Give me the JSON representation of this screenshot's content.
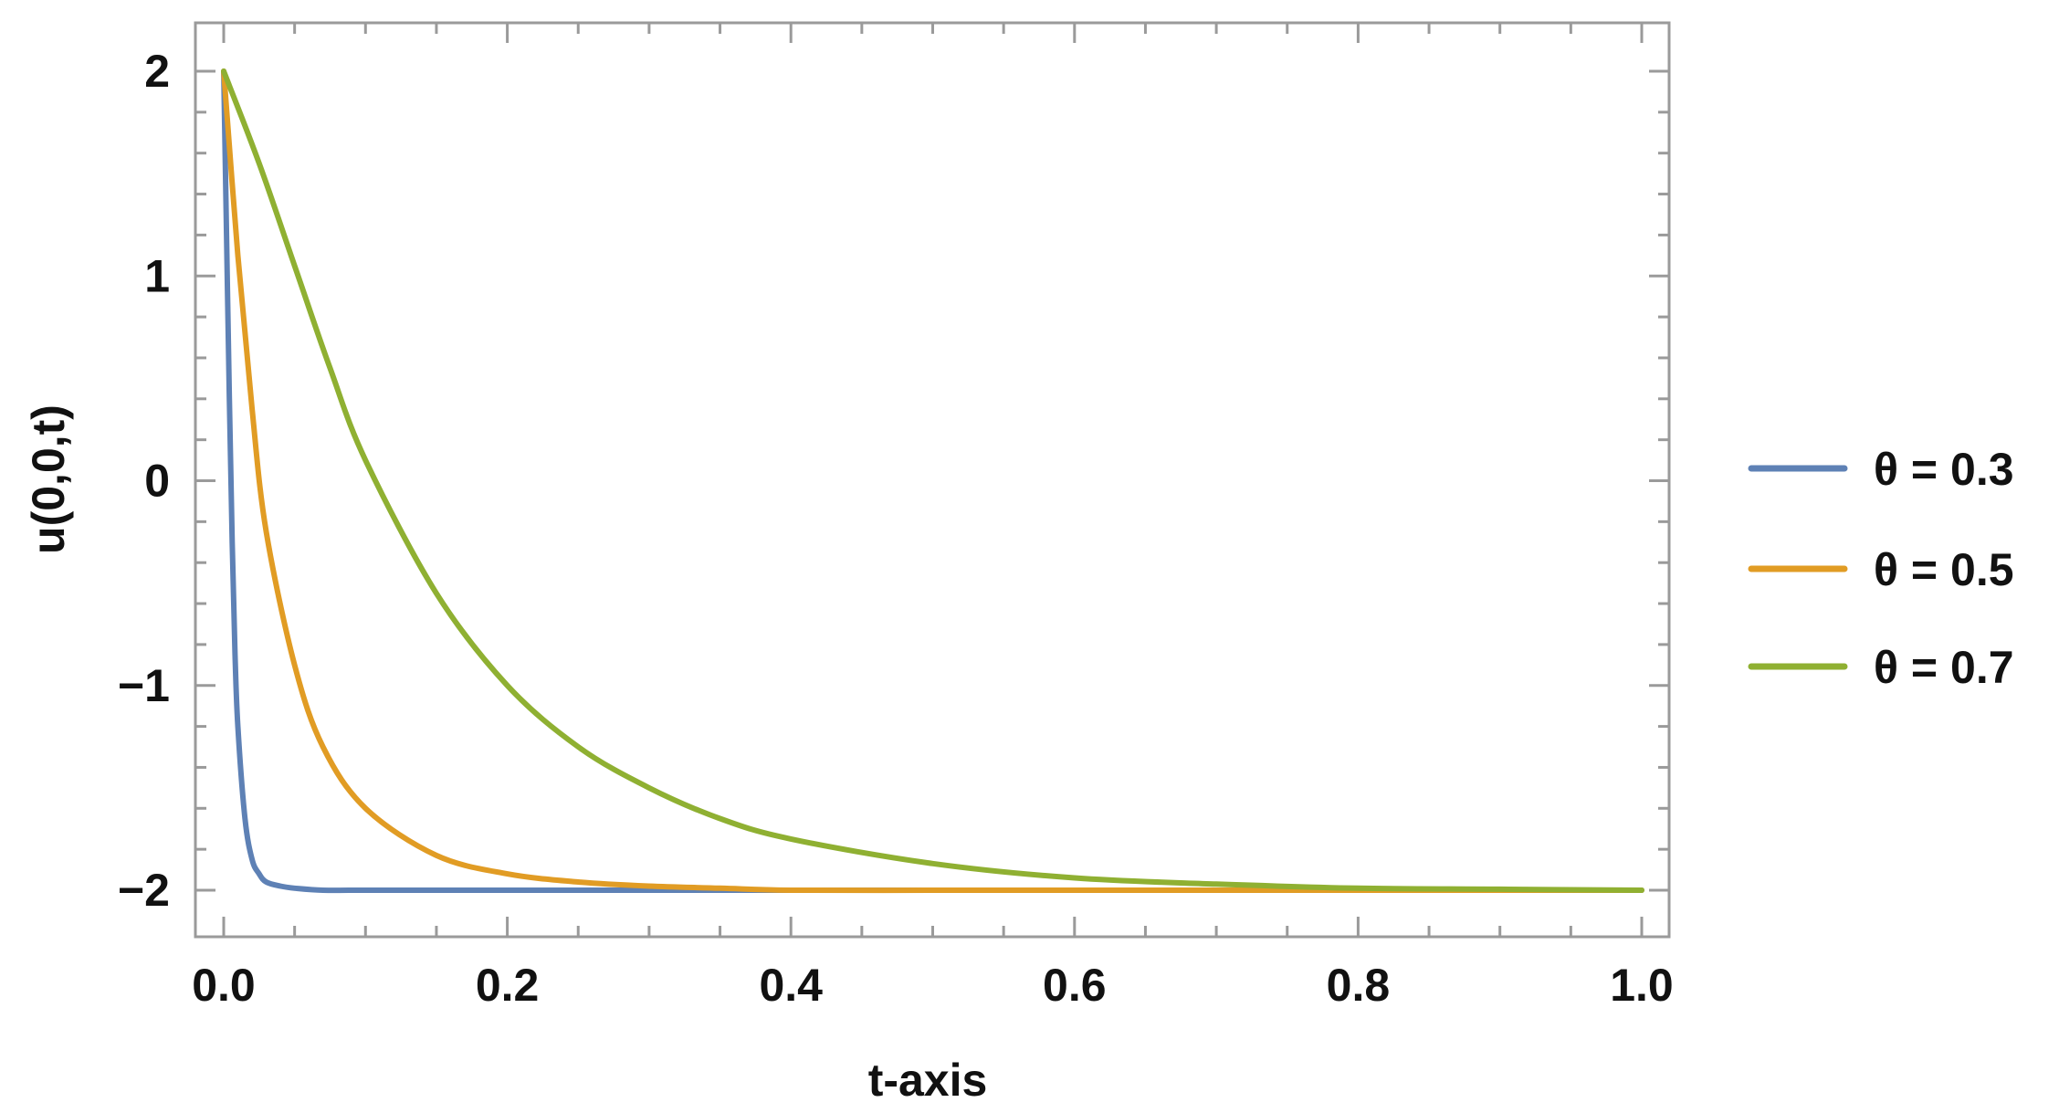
{
  "chart_data": {
    "type": "line",
    "xlabel": "t-axis",
    "ylabel": "u(0,0,t)",
    "xlim": [
      0.0,
      1.0
    ],
    "ylim": [
      -2.2,
      2.2
    ],
    "xticks": [
      "0.0",
      "0.2",
      "0.4",
      "0.6",
      "0.8",
      "1.0"
    ],
    "xtick_values": [
      0.0,
      0.2,
      0.4,
      0.6,
      0.8,
      1.0
    ],
    "yticks": [
      "−2",
      "−1",
      "0",
      "1",
      "2"
    ],
    "ytick_values": [
      -2,
      -1,
      0,
      1,
      2
    ],
    "grid": false,
    "legend_position": "right",
    "series": [
      {
        "name": "θ = 0.3",
        "color": "#5e81b5",
        "x": [
          0.0,
          0.002,
          0.004,
          0.006,
          0.008,
          0.01,
          0.015,
          0.02,
          0.025,
          0.03,
          0.04,
          0.05,
          0.07,
          0.1,
          0.2,
          0.4,
          0.6,
          0.8,
          1.0
        ],
        "y": [
          2.0,
          1.2,
          0.4,
          -0.3,
          -0.85,
          -1.2,
          -1.65,
          -1.85,
          -1.92,
          -1.96,
          -1.98,
          -1.99,
          -2.0,
          -2.0,
          -2.0,
          -2.0,
          -2.0,
          -2.0,
          -2.0
        ]
      },
      {
        "name": "θ = 0.5",
        "color": "#e19c24",
        "x": [
          0.0,
          0.01,
          0.02,
          0.03,
          0.05,
          0.07,
          0.1,
          0.15,
          0.2,
          0.25,
          0.3,
          0.35,
          0.4,
          0.5,
          0.6,
          0.7,
          0.8,
          0.9,
          1.0
        ],
        "y": [
          2.0,
          1.1,
          0.35,
          -0.25,
          -0.9,
          -1.3,
          -1.6,
          -1.83,
          -1.92,
          -1.96,
          -1.98,
          -1.99,
          -2.0,
          -2.0,
          -2.0,
          -2.0,
          -2.0,
          -2.0,
          -2.0
        ]
      },
      {
        "name": "θ = 0.7",
        "color": "#8fb032",
        "x": [
          0.0,
          0.025,
          0.05,
          0.075,
          0.1,
          0.15,
          0.2,
          0.25,
          0.3,
          0.35,
          0.4,
          0.5,
          0.6,
          0.7,
          0.8,
          0.9,
          1.0
        ],
        "y": [
          2.0,
          1.55,
          1.05,
          0.55,
          0.1,
          -0.55,
          -1.0,
          -1.3,
          -1.5,
          -1.65,
          -1.75,
          -1.87,
          -1.94,
          -1.97,
          -1.99,
          -1.995,
          -2.0
        ]
      }
    ]
  }
}
